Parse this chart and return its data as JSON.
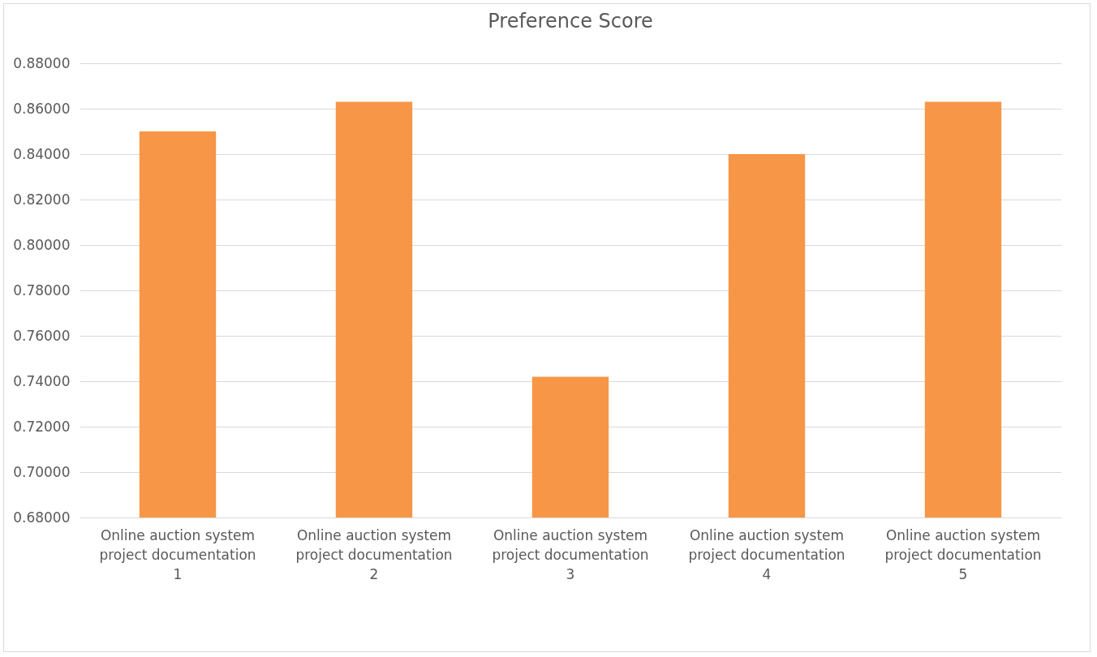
{
  "chart_data": {
    "type": "bar",
    "title": "Preference Score",
    "categories": [
      "Online auction system project documentation 1",
      "Online auction system project documentation 2",
      "Online auction system project documentation 3",
      "Online auction system project documentation 4",
      "Online auction system project documentation 5"
    ],
    "values": [
      0.85,
      0.863,
      0.742,
      0.84,
      0.863
    ],
    "color": "#f79646",
    "ylim": [
      0.68,
      0.88
    ],
    "yticks": [
      {
        "value": 0.68,
        "label": "0.68000"
      },
      {
        "value": 0.7,
        "label": "0.70000"
      },
      {
        "value": 0.72,
        "label": "0.72000"
      },
      {
        "value": 0.74,
        "label": "0.74000"
      },
      {
        "value": 0.76,
        "label": "0.76000"
      },
      {
        "value": 0.78,
        "label": "0.78000"
      },
      {
        "value": 0.8,
        "label": "0.80000"
      },
      {
        "value": 0.82,
        "label": "0.82000"
      },
      {
        "value": 0.84,
        "label": "0.84000"
      },
      {
        "value": 0.86,
        "label": "0.86000"
      },
      {
        "value": 0.88,
        "label": "0.88000"
      }
    ],
    "grid": "y"
  }
}
